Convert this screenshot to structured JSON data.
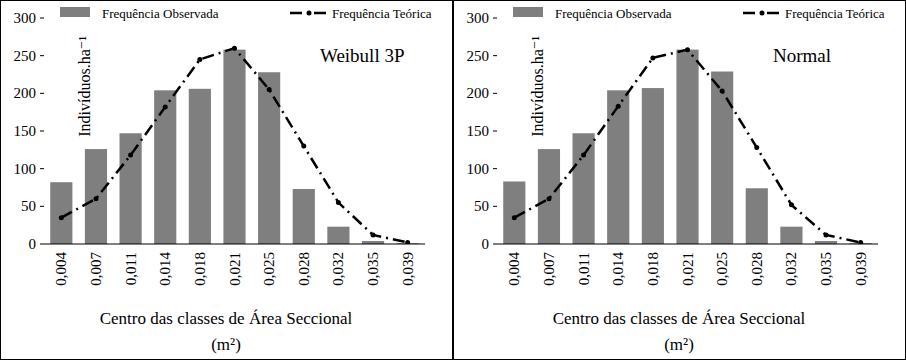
{
  "chart_data": [
    {
      "type": "bar",
      "annotation": "Weibull 3P",
      "y_label": "Indivíduos.ha⁻¹",
      "x_label": "Centro das classes de Área Seccional (m²)",
      "categories": [
        "0,004",
        "0,007",
        "0,011",
        "0,014",
        "0,018",
        "0,021",
        "0,025",
        "0,028",
        "0,032",
        "0,035",
        "0,039"
      ],
      "series": [
        {
          "name": "Frequência Observada",
          "type": "bar",
          "color": "#7f7f7f",
          "values": [
            82,
            126,
            147,
            204,
            206,
            258,
            228,
            73,
            23,
            4,
            1
          ]
        },
        {
          "name": "Frequência Teórica",
          "type": "line",
          "color": "#000000",
          "line_style": "dashdot",
          "marker": "circle",
          "values": [
            35,
            60,
            118,
            182,
            245,
            260,
            205,
            130,
            55,
            12,
            2
          ]
        }
      ],
      "ylim": [
        0,
        300
      ],
      "yticks": [
        0,
        50,
        100,
        150,
        200,
        250,
        300
      ],
      "grid": false,
      "legend": "top"
    },
    {
      "type": "bar",
      "annotation": "Normal",
      "y_label": "Indivíduos.ha⁻¹",
      "x_label": "Centro das classes de Área Seccional (m²)",
      "categories": [
        "0,004",
        "0,007",
        "0,011",
        "0,014",
        "0,018",
        "0,021",
        "0,025",
        "0,028",
        "0,032",
        "0,035",
        "0,039"
      ],
      "series": [
        {
          "name": "Frequência Observada",
          "type": "bar",
          "color": "#7f7f7f",
          "values": [
            83,
            126,
            147,
            204,
            207,
            258,
            229,
            74,
            23,
            4,
            1
          ]
        },
        {
          "name": "Frequência Teórica",
          "type": "line",
          "color": "#000000",
          "line_style": "dashdot",
          "marker": "circle",
          "values": [
            35,
            60,
            118,
            183,
            247,
            258,
            203,
            128,
            52,
            12,
            2
          ]
        }
      ],
      "ylim": [
        0,
        300
      ],
      "yticks": [
        0,
        50,
        100,
        150,
        200,
        250,
        300
      ],
      "grid": false,
      "legend": "top"
    }
  ]
}
